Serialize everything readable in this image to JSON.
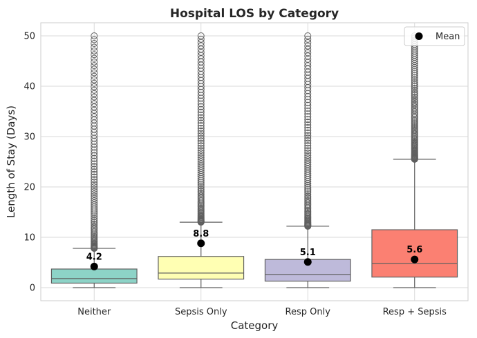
{
  "chart_data": {
    "type": "box",
    "title": "Hospital LOS by Category",
    "xlabel": "Category",
    "ylabel": "Length of Stay (Days)",
    "ylim": [
      -2.6,
      52.6
    ],
    "yticks": [
      0,
      10,
      20,
      30,
      40,
      50
    ],
    "grid": true,
    "legend": {
      "position": "top-right",
      "entries": [
        "Mean"
      ]
    },
    "categories": [
      "Neither",
      "Sepsis Only",
      "Resp Only",
      "Resp + Sepsis"
    ],
    "boxes": [
      {
        "category": "Neither",
        "color": "#8dd3c7",
        "whisker_low": 0,
        "q1": 0.9,
        "median": 1.8,
        "q3": 3.7,
        "whisker_high": 7.8,
        "outlier_min": 7.8,
        "outlier_max": 50,
        "mean": 4.2,
        "mean_label": "4.2"
      },
      {
        "category": "Sepsis Only",
        "color": "#ffffb3",
        "whisker_low": 0,
        "q1": 1.7,
        "median": 2.9,
        "q3": 6.2,
        "whisker_high": 13.0,
        "outlier_min": 13.0,
        "outlier_max": 50,
        "mean": 8.8,
        "mean_label": "8.8"
      },
      {
        "category": "Resp Only",
        "color": "#bebada",
        "whisker_low": 0,
        "q1": 1.3,
        "median": 2.6,
        "q3": 5.6,
        "whisker_high": 12.2,
        "outlier_min": 12.2,
        "outlier_max": 50,
        "mean": 5.1,
        "mean_label": "5.1"
      },
      {
        "category": "Resp + Sepsis",
        "color": "#fb8072",
        "whisker_low": 0,
        "q1": 2.1,
        "median": 4.8,
        "q3": 11.5,
        "whisker_high": 25.5,
        "outlier_min": 25.5,
        "outlier_max": 50,
        "mean": 5.6,
        "mean_label": "5.6"
      }
    ]
  }
}
